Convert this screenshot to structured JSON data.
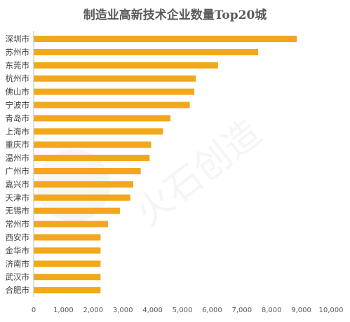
{
  "chart_data": {
    "type": "bar",
    "orientation": "horizontal",
    "title": "制造业高新技术企业数量Top20城",
    "categories": [
      "深圳市",
      "苏州市",
      "东莞市",
      "杭州市",
      "佛山市",
      "宁波市",
      "青岛市",
      "上海市",
      "重庆市",
      "温州市",
      "广州市",
      "嘉兴市",
      "天津市",
      "无锡市",
      "常州市",
      "西安市",
      "金华市",
      "济南市",
      "武汉市",
      "合肥市"
    ],
    "values": [
      8850,
      7550,
      6200,
      5450,
      5400,
      5250,
      4600,
      4350,
      3950,
      3900,
      3600,
      3350,
      3250,
      2900,
      2500,
      2250,
      2250,
      2250,
      2250,
      2250
    ],
    "xlim": [
      0,
      10000
    ],
    "ticks": [
      "0",
      "1,000",
      "2,000",
      "3,000",
      "4,000",
      "5,000",
      "6,000",
      "7,000",
      "8,000",
      "9,000",
      "10,000"
    ],
    "grid": false,
    "bar_color": "#F2A81D",
    "watermark": "火石创造"
  }
}
